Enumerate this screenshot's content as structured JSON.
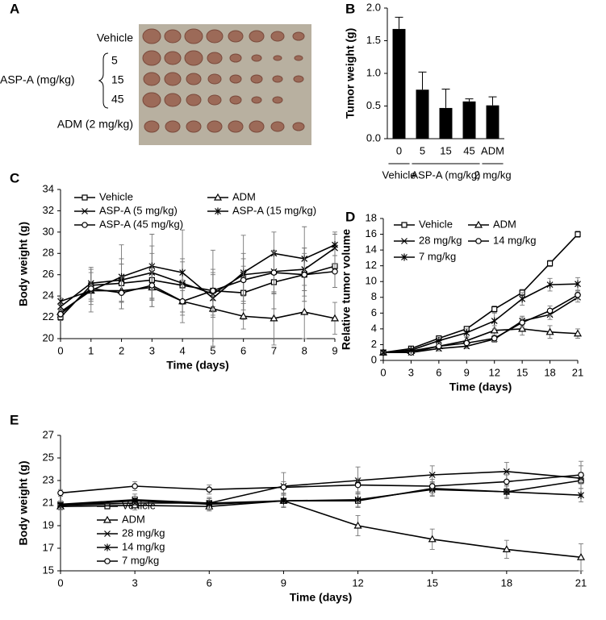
{
  "panel_a": {
    "letter": "A",
    "rows": [
      "Vehicle",
      "ADM (2 mg/kg)"
    ],
    "group": "ASP-A (mg/kg)",
    "doses": [
      "5",
      "15",
      "45"
    ]
  },
  "chart_data": [
    {
      "type": "bar",
      "panel": "B",
      "y_label": "Tumor weight (g)",
      "categories": [
        "0",
        "5",
        "15",
        "45",
        "ADM"
      ],
      "group_labels": [
        "Vehicle",
        "ASP-A (mg/kg)",
        "2 mg/kg"
      ],
      "values": [
        1.68,
        0.75,
        0.47,
        0.57,
        0.51
      ],
      "errors": [
        0.18,
        0.27,
        0.29,
        0.04,
        0.13
      ],
      "color": "#000000",
      "ylim": [
        0,
        2
      ],
      "yticks": [
        {
          "value": 0,
          "label": "0.0"
        },
        0.5,
        {
          "value": 1,
          "label": "1.0"
        },
        1.5,
        {
          "value": 2,
          "label": "2.0"
        }
      ],
      "grid": false
    },
    {
      "type": "line",
      "panel": "C",
      "x_label": "Time (days)",
      "y_label": "Body weight (g)",
      "x": [
        0,
        1,
        2,
        3,
        4,
        5,
        6,
        7,
        8,
        9
      ],
      "xlim": [
        0,
        9
      ],
      "xticks": [
        0,
        1,
        2,
        3,
        4,
        5,
        6,
        7,
        8,
        9
      ],
      "ylim": [
        20,
        34
      ],
      "yticks": [
        20,
        22,
        24,
        26,
        28,
        30,
        32,
        34
      ],
      "grid": false,
      "legend": "upper left",
      "series": [
        {
          "name": "Vehicle",
          "color": "#000000",
          "marker": "square",
          "values": [
            22.0,
            25.0,
            25.2,
            25.5,
            25.0,
            24.5,
            24.3,
            25.3,
            26.0,
            26.8
          ],
          "errors": [
            0.3,
            1.5,
            1.8,
            2.5,
            2.5,
            1.5,
            2.5,
            2.5,
            2.5,
            2.0
          ]
        },
        {
          "name": "ADM",
          "color": "#000000",
          "marker": "triangle",
          "values": [
            22.5,
            24.5,
            24.5,
            24.8,
            23.5,
            22.8,
            22.1,
            21.9,
            22.5,
            21.9
          ],
          "errors": [
            0.3,
            0.8,
            1.0,
            1.2,
            1.0,
            0.8,
            1.2,
            2.5,
            2.5,
            1.5
          ]
        },
        {
          "name": "ASP-A (5 mg/kg)",
          "color": "#000000",
          "marker": "x",
          "values": [
            23.0,
            25.2,
            25.5,
            26.2,
            25.2,
            24.2,
            26.0,
            26.3,
            26.5,
            28.5
          ],
          "errors": [
            0.3,
            1.5,
            2.0,
            2.5,
            2.0,
            2.0,
            2.0,
            2.0,
            2.0,
            1.5
          ]
        },
        {
          "name": "ASP-A (15 mg/kg)",
          "color": "#000000",
          "marker": "star",
          "values": [
            23.5,
            24.5,
            25.8,
            26.8,
            26.2,
            23.8,
            26.2,
            28.0,
            27.5,
            28.8
          ],
          "errors": [
            0.3,
            2.0,
            3.0,
            3.0,
            4.0,
            4.5,
            3.5,
            2.0,
            3.0,
            1.0
          ]
        },
        {
          "name": "ASP-A (45 mg/kg)",
          "color": "#000000",
          "marker": "circle",
          "values": [
            22.3,
            24.7,
            24.3,
            25.0,
            23.5,
            24.5,
            25.5,
            26.2,
            26.0,
            26.3
          ],
          "errors": [
            0.3,
            1.5,
            1.5,
            2.0,
            2.0,
            2.0,
            2.0,
            2.0,
            2.0,
            1.5
          ]
        }
      ]
    },
    {
      "type": "line",
      "panel": "D",
      "x_label": "Time (days)",
      "y_label": "Relative tumor volume",
      "x": [
        0,
        3,
        6,
        9,
        12,
        15,
        18,
        21
      ],
      "xlim": [
        0,
        21
      ],
      "xticks": [
        0,
        3,
        6,
        9,
        12,
        15,
        18,
        21
      ],
      "ylim": [
        0,
        18
      ],
      "yticks": [
        0,
        2,
        4,
        6,
        8,
        10,
        12,
        14,
        16,
        18
      ],
      "grid": false,
      "legend": "upper left",
      "series": [
        {
          "name": "Vehicle",
          "color": "#000000",
          "marker": "square",
          "values": [
            1,
            1.5,
            2.8,
            4.0,
            6.5,
            8.6,
            12.3,
            16.0
          ],
          "errors": [
            0.1,
            0.2,
            0.3,
            0.3,
            0.4,
            0.4,
            0.4,
            0.4
          ]
        },
        {
          "name": "ADM",
          "color": "#000000",
          "marker": "triangle",
          "values": [
            1,
            1.2,
            1.8,
            2.5,
            3.8,
            4.0,
            3.6,
            3.4
          ],
          "errors": [
            0.1,
            0.2,
            0.3,
            0.4,
            0.6,
            0.8,
            0.8,
            0.6
          ]
        },
        {
          "name": "28 mg/kg",
          "color": "#000000",
          "marker": "x",
          "values": [
            1,
            1.0,
            1.5,
            1.8,
            2.7,
            5.0,
            5.8,
            8.0
          ],
          "errors": [
            0.1,
            0.2,
            0.3,
            0.3,
            0.4,
            0.6,
            0.6,
            0.6
          ]
        },
        {
          "name": "14 mg/kg",
          "color": "#000000",
          "marker": "circle",
          "values": [
            1,
            1.0,
            1.8,
            2.2,
            2.8,
            4.8,
            6.3,
            8.3
          ],
          "errors": [
            0.1,
            0.2,
            0.3,
            0.3,
            0.4,
            0.6,
            0.6,
            0.5
          ]
        },
        {
          "name": "7 mg/kg",
          "color": "#000000",
          "marker": "star",
          "values": [
            1,
            1.3,
            2.5,
            3.5,
            5.0,
            7.8,
            9.6,
            9.7
          ],
          "errors": [
            0.1,
            0.2,
            0.4,
            0.5,
            1.0,
            0.8,
            0.8,
            0.8
          ]
        }
      ]
    },
    {
      "type": "line",
      "panel": "E",
      "x_label": "Time (days)",
      "y_label": "Body weight (g)",
      "x": [
        0,
        3,
        6,
        9,
        12,
        15,
        18,
        21
      ],
      "xlim": [
        0,
        21
      ],
      "xticks": [
        0,
        3,
        6,
        9,
        12,
        15,
        18,
        21
      ],
      "ylim": [
        15,
        27
      ],
      "yticks": [
        15,
        17,
        19,
        21,
        23,
        25,
        27
      ],
      "grid": false,
      "legend": "lower left",
      "series": [
        {
          "name": "Vehicle",
          "color": "#000000",
          "marker": "square",
          "values": [
            20.8,
            21.0,
            21.0,
            21.2,
            21.2,
            22.3,
            22.0,
            23.0
          ],
          "errors": [
            0.3,
            0.4,
            0.4,
            0.5,
            0.6,
            0.6,
            0.6,
            0.7
          ]
        },
        {
          "name": "ADM",
          "color": "#000000",
          "marker": "triangle",
          "values": [
            20.7,
            20.8,
            20.7,
            21.2,
            19.0,
            17.8,
            16.9,
            16.2
          ],
          "errors": [
            0.3,
            0.4,
            0.4,
            0.6,
            0.9,
            0.9,
            0.8,
            1.2
          ]
        },
        {
          "name": "28 mg/kg",
          "color": "#000000",
          "marker": "x",
          "values": [
            20.9,
            21.3,
            21.0,
            22.5,
            23.0,
            23.5,
            23.8,
            23.2
          ],
          "errors": [
            0.3,
            0.5,
            0.5,
            1.2,
            1.2,
            0.8,
            0.8,
            1.5
          ]
        },
        {
          "name": "14 mg/kg",
          "color": "#000000",
          "marker": "star",
          "values": [
            20.8,
            21.2,
            20.9,
            21.2,
            21.3,
            22.2,
            22.0,
            21.7
          ],
          "errors": [
            0.3,
            0.4,
            0.5,
            0.6,
            0.6,
            0.6,
            0.5,
            0.6
          ]
        },
        {
          "name": "7 mg/kg",
          "color": "#000000",
          "marker": "circle",
          "values": [
            21.9,
            22.5,
            22.2,
            22.4,
            22.6,
            22.5,
            22.9,
            23.5
          ],
          "errors": [
            0.3,
            0.4,
            0.4,
            0.5,
            0.6,
            0.6,
            0.6,
            0.8
          ]
        }
      ]
    }
  ]
}
